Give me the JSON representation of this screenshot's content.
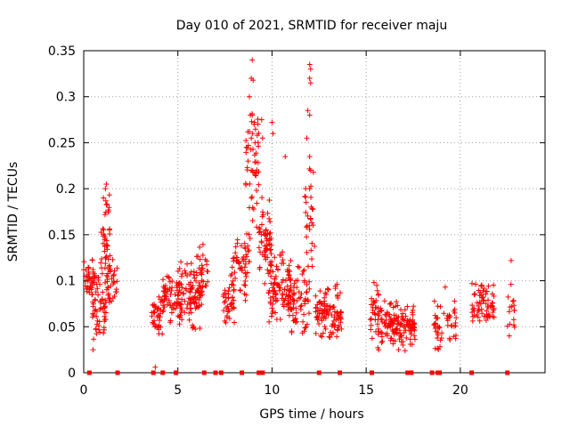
{
  "chart_data": {
    "type": "scatter",
    "title": "Day 010 of 2021, SRMTID for receiver maju",
    "xlabel": "GPS time / hours",
    "ylabel": "SRMTID / TECUs",
    "xlim": [
      0,
      24.5
    ],
    "ylim": [
      0,
      0.35
    ],
    "xticks": [
      0,
      5,
      10,
      15,
      20
    ],
    "xtick_labels": [
      "0",
      "5",
      "10",
      "15",
      "20"
    ],
    "yticks": [
      0,
      0.05,
      0.1,
      0.15,
      0.2,
      0.25,
      0.3,
      0.35
    ],
    "ytick_labels": [
      "0",
      "0.05",
      "0.1",
      "0.15",
      "0.2",
      "0.25",
      "0.3",
      "0.35"
    ],
    "grid": true,
    "marker": "+",
    "color": "#ff0000",
    "zero_markers_x": [
      0.3,
      1.8,
      3.7,
      4.2,
      4.9,
      6.4,
      7.0,
      7.3,
      8.4,
      9.3,
      9.5,
      12.5,
      13.6,
      15.3,
      17.2,
      17.4,
      18.5,
      18.8,
      18.9,
      20.6,
      22.5
    ],
    "clusters": [
      {
        "x": [
          0.0,
          0.6
        ],
        "y": [
          0.08,
          0.13
        ],
        "n": 40
      },
      {
        "x": [
          0.4,
          1.2
        ],
        "y": [
          0.03,
          0.11
        ],
        "n": 55
      },
      {
        "x": [
          0.9,
          1.4
        ],
        "y": [
          0.08,
          0.2
        ],
        "n": 45
      },
      {
        "x": [
          1.2,
          1.8
        ],
        "y": [
          0.07,
          0.13
        ],
        "n": 35
      },
      {
        "x": [
          3.6,
          4.2
        ],
        "y": [
          0.04,
          0.09
        ],
        "n": 40
      },
      {
        "x": [
          4.2,
          5.2
        ],
        "y": [
          0.05,
          0.12
        ],
        "n": 70
      },
      {
        "x": [
          5.0,
          6.3
        ],
        "y": [
          0.04,
          0.13
        ],
        "n": 100
      },
      {
        "x": [
          6.0,
          6.6
        ],
        "y": [
          0.08,
          0.14
        ],
        "n": 25
      },
      {
        "x": [
          7.4,
          8.0
        ],
        "y": [
          0.05,
          0.1
        ],
        "n": 35
      },
      {
        "x": [
          7.8,
          8.8
        ],
        "y": [
          0.07,
          0.15
        ],
        "n": 60
      },
      {
        "x": [
          8.6,
          9.3
        ],
        "y": [
          0.13,
          0.3
        ],
        "n": 50
      },
      {
        "x": [
          9.3,
          10.0
        ],
        "y": [
          0.09,
          0.2
        ],
        "n": 60
      },
      {
        "x": [
          9.8,
          11.0
        ],
        "y": [
          0.05,
          0.14
        ],
        "n": 90
      },
      {
        "x": [
          10.8,
          12.0
        ],
        "y": [
          0.04,
          0.12
        ],
        "n": 80
      },
      {
        "x": [
          11.7,
          12.3
        ],
        "y": [
          0.1,
          0.24
        ],
        "n": 30
      },
      {
        "x": [
          12.3,
          13.7
        ],
        "y": [
          0.03,
          0.1
        ],
        "n": 110
      },
      {
        "x": [
          15.2,
          15.7
        ],
        "y": [
          0.03,
          0.12
        ],
        "n": 30
      },
      {
        "x": [
          15.6,
          17.6
        ],
        "y": [
          0.02,
          0.08
        ],
        "n": 150
      },
      {
        "x": [
          18.6,
          19.8
        ],
        "y": [
          0.02,
          0.08
        ],
        "n": 50
      },
      {
        "x": [
          20.6,
          21.8
        ],
        "y": [
          0.05,
          0.1
        ],
        "n": 70
      },
      {
        "x": [
          22.5,
          22.9
        ],
        "y": [
          0.04,
          0.1
        ],
        "n": 15
      }
    ],
    "peaks": [
      {
        "x": 1.2,
        "y": 0.205
      },
      {
        "x": 1.15,
        "y": 0.2
      },
      {
        "x": 1.3,
        "y": 0.175
      },
      {
        "x": 8.95,
        "y": 0.34
      },
      {
        "x": 8.9,
        "y": 0.32
      },
      {
        "x": 9.0,
        "y": 0.318
      },
      {
        "x": 8.8,
        "y": 0.3
      },
      {
        "x": 8.85,
        "y": 0.28
      },
      {
        "x": 8.95,
        "y": 0.28
      },
      {
        "x": 9.05,
        "y": 0.27
      },
      {
        "x": 8.8,
        "y": 0.262
      },
      {
        "x": 8.9,
        "y": 0.255
      },
      {
        "x": 9.1,
        "y": 0.25
      },
      {
        "x": 9.45,
        "y": 0.275
      },
      {
        "x": 9.5,
        "y": 0.255
      },
      {
        "x": 10.0,
        "y": 0.272
      },
      {
        "x": 10.05,
        "y": 0.26
      },
      {
        "x": 10.7,
        "y": 0.235
      },
      {
        "x": 12.0,
        "y": 0.335
      },
      {
        "x": 12.05,
        "y": 0.33
      },
      {
        "x": 12.0,
        "y": 0.32
      },
      {
        "x": 12.05,
        "y": 0.315
      },
      {
        "x": 11.9,
        "y": 0.285
      },
      {
        "x": 12.0,
        "y": 0.28
      },
      {
        "x": 11.85,
        "y": 0.255
      },
      {
        "x": 12.0,
        "y": 0.235
      },
      {
        "x": 12.05,
        "y": 0.22
      },
      {
        "x": 8.9,
        "y": 0.22
      },
      {
        "x": 9.1,
        "y": 0.215
      },
      {
        "x": 12.0,
        "y": 0.2
      },
      {
        "x": 3.8,
        "y": 0.006
      },
      {
        "x": 0.5,
        "y": 0.025
      },
      {
        "x": 22.7,
        "y": 0.122
      },
      {
        "x": 19.2,
        "y": 0.093
      },
      {
        "x": 22.6,
        "y": 0.04
      }
    ]
  }
}
